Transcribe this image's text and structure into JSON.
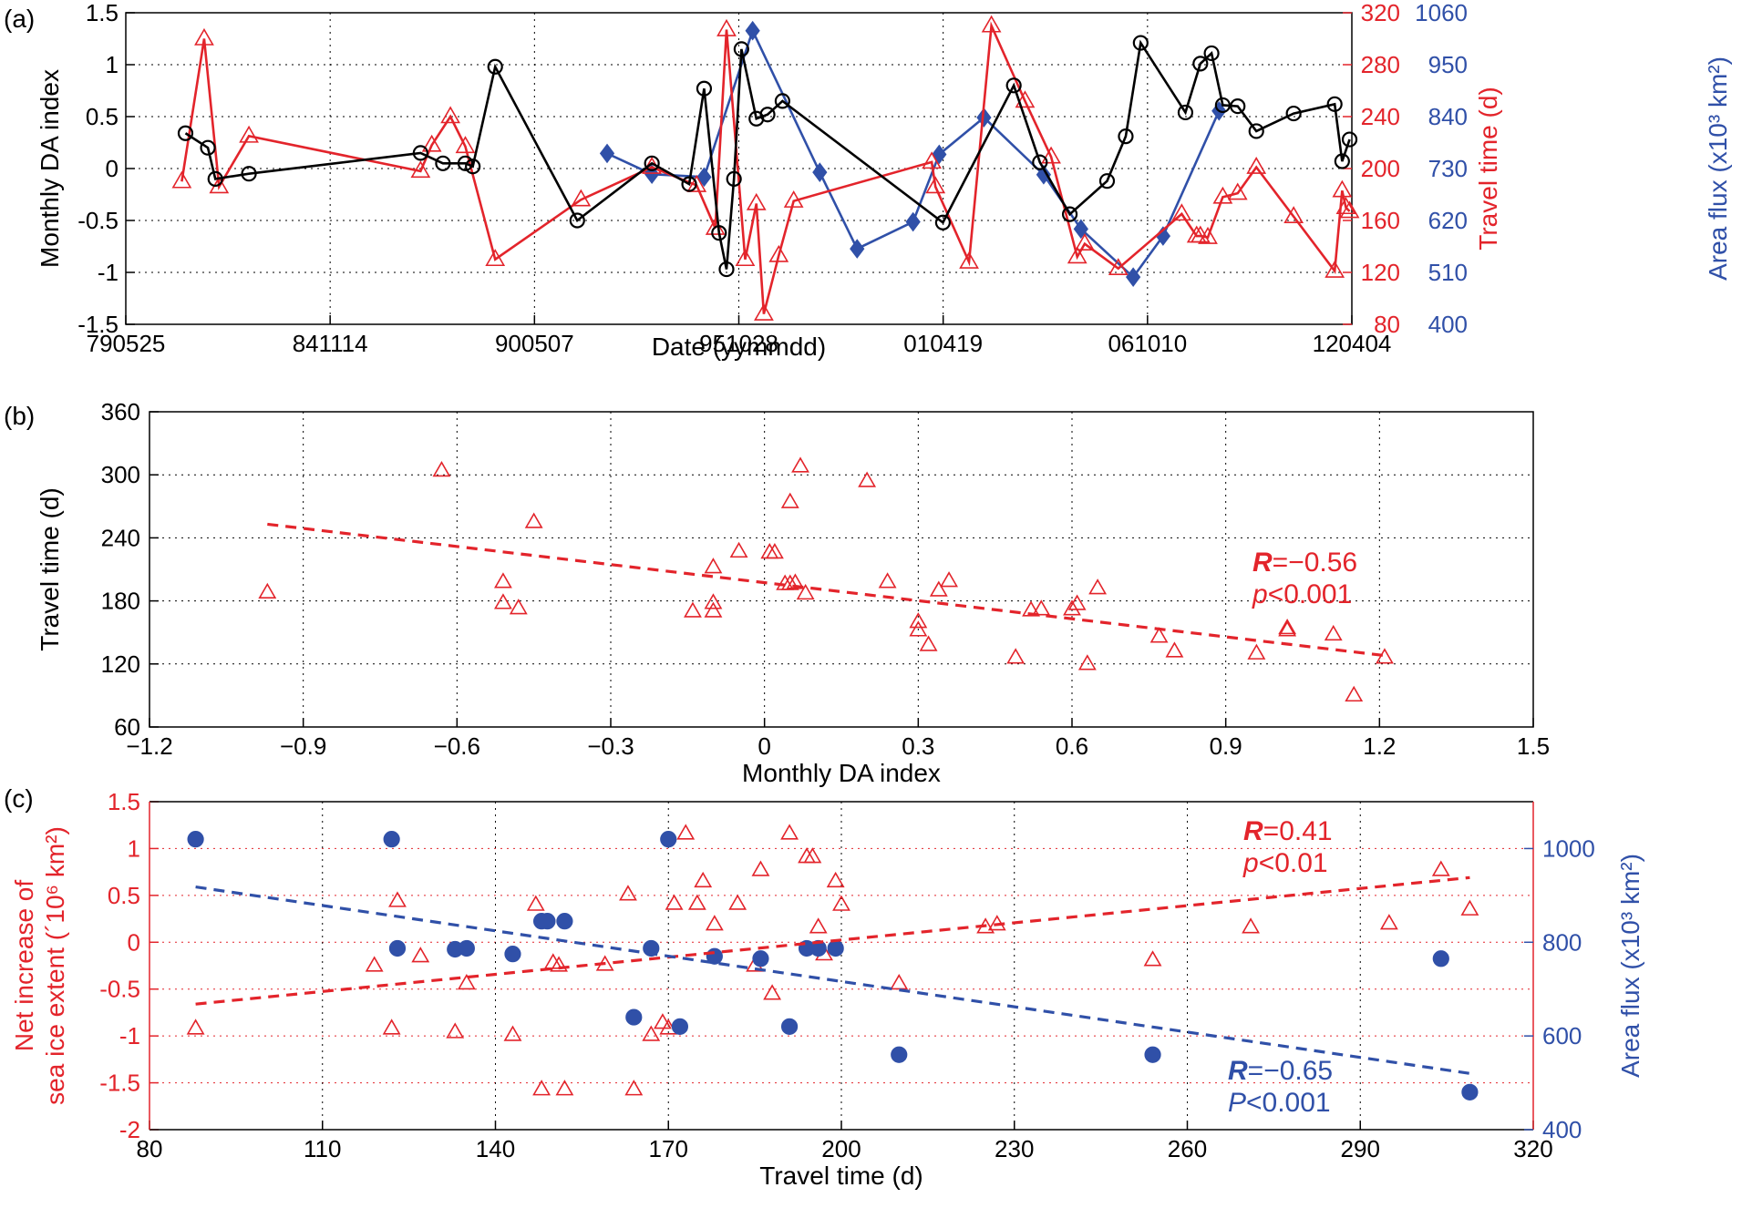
{
  "chart_data": [
    {
      "panel": "(a)",
      "type": "line",
      "xlabel": "Date (yymmdd)",
      "x_ticks": [
        "790525",
        "841114",
        "900507",
        "951028",
        "010419",
        "061010",
        "120404"
      ],
      "xlim": [
        1979.4,
        2012.26
      ],
      "ylabel": "Monthly DA index",
      "ylim": [
        -1.5,
        1.5
      ],
      "y_ticks": [
        "-1.5",
        "-1",
        "-0.5",
        "0",
        "0.5",
        "1",
        "1.5"
      ],
      "y2label": "Travel time (d)",
      "y2lim": [
        80,
        320
      ],
      "y2_ticks": [
        "80",
        "120",
        "160",
        "200",
        "240",
        "280",
        "320"
      ],
      "y3label": "Area flux (x10³ km²)",
      "y3lim": [
        400,
        1060
      ],
      "y3_ticks": [
        "400",
        "510",
        "620",
        "730",
        "840",
        "950",
        "1060"
      ],
      "series": [
        {
          "name": "Monthly DA index",
          "color": "#000000",
          "marker": "circle",
          "x": [
            1981.0,
            1981.6,
            1981.8,
            1982.7,
            1987.3,
            1987.9,
            1988.5,
            1988.7,
            1989.3,
            1991.5,
            1993.5,
            1994.5,
            1994.9,
            1995.3,
            1995.5,
            1995.7,
            1995.9,
            1996.3,
            1996.6,
            1997.0,
            2001.3,
            2003.2,
            2003.9,
            2004.7,
            2005.7,
            2006.2,
            2006.6,
            2007.8,
            2008.2,
            2008.5,
            2008.8,
            2009.2,
            2009.7,
            2010.7,
            2011.8,
            2012.0,
            2012.2
          ],
          "values": [
            0.34,
            0.2,
            -0.1,
            -0.05,
            0.15,
            0.05,
            0.05,
            0.02,
            0.98,
            -0.5,
            0.05,
            -0.15,
            0.77,
            -0.62,
            -0.97,
            -0.1,
            1.15,
            0.48,
            0.52,
            0.65,
            -0.52,
            0.8,
            0.06,
            -0.44,
            -0.12,
            0.31,
            1.21,
            0.54,
            1.01,
            1.11,
            0.61,
            0.6,
            0.36,
            0.53,
            0.62,
            0.07,
            0.28
          ]
        },
        {
          "name": "Travel time",
          "color": "#e3242b",
          "marker": "triangle",
          "axis": "y2",
          "x": [
            1980.9,
            1981.5,
            1981.9,
            1982.7,
            1987.3,
            1987.6,
            1988.1,
            1988.5,
            1989.3,
            1991.6,
            1993.5,
            1994.7,
            1995.2,
            1995.5,
            1996.0,
            1996.3,
            1996.5,
            1996.9,
            1997.3,
            2001.0,
            2001.1,
            2002.0,
            2002.6,
            2003.5,
            2004.2,
            2004.9,
            2005.1,
            2006.0,
            2007.7,
            2008.1,
            2008.2,
            2008.4,
            2008.8,
            2009.2,
            2009.7,
            2010.7,
            2011.8,
            2012.0,
            2012.1,
            2012.2
          ],
          "values": [
            190,
            300,
            186,
            225,
            198,
            218,
            240,
            217,
            130,
            176,
            201,
            187,
            154,
            307,
            130,
            173,
            88,
            133,
            175,
            205,
            186,
            128,
            310,
            252,
            209,
            132,
            142,
            123,
            165,
            148,
            148,
            147,
            178,
            181,
            201,
            163,
            121,
            183,
            170,
            167
          ]
        },
        {
          "name": "Area flux",
          "color": "#3050a8",
          "marker": "diamond",
          "axis": "y3",
          "x": [
            1992.3,
            1993.5,
            1994.9,
            1996.2,
            1998.0,
            1999.0,
            2000.5,
            2001.2,
            2002.4,
            2004.0,
            2005.0,
            2006.4,
            2007.2,
            2008.7
          ],
          "values": [
            762,
            718,
            712,
            1022,
            722,
            560,
            617,
            760,
            838,
            717,
            602,
            500,
            587,
            852
          ]
        }
      ]
    },
    {
      "panel": "(b)",
      "type": "scatter",
      "xlabel": "Monthly DA index",
      "ylabel": "Travel time (d)",
      "xlim": [
        -1.2,
        1.5
      ],
      "ylim": [
        60,
        360
      ],
      "x_ticks": [
        "−1.2",
        "−0.9",
        "−0.6",
        "−0.3",
        "0",
        "0.3",
        "0.6",
        "0.9",
        "1.2",
        "1.5"
      ],
      "y_ticks": [
        "60",
        "120",
        "180",
        "240",
        "300",
        "360"
      ],
      "series": [
        {
          "name": "Travel time vs DA index",
          "color": "#e3242b",
          "marker": "triangle",
          "x": [
            -0.97,
            -0.63,
            -0.51,
            -0.51,
            -0.48,
            -0.45,
            -0.14,
            -0.1,
            -0.1,
            -0.05,
            -0.1,
            0.01,
            0.02,
            0.04,
            0.05,
            0.05,
            0.06,
            0.07,
            0.08,
            0.2,
            0.24,
            0.3,
            0.3,
            0.32,
            0.34,
            0.36,
            0.49,
            0.52,
            0.54,
            0.6,
            0.61,
            0.63,
            0.65,
            0.77,
            0.8,
            0.96,
            1.02,
            1.02,
            1.11,
            1.15,
            1.21
          ],
          "values": [
            188,
            304,
            178,
            198,
            173,
            255,
            170,
            170,
            178,
            227,
            212,
            226,
            226,
            196,
            274,
            196,
            197,
            308,
            187,
            294,
            198,
            160,
            152,
            138,
            190,
            199,
            126,
            171,
            172,
            172,
            177,
            120,
            192,
            146,
            132,
            130,
            154,
            152,
            148,
            90,
            126
          ]
        },
        {
          "name": "fit",
          "type": "line",
          "x": [
            -0.97,
            1.21
          ],
          "values": [
            253,
            128
          ]
        }
      ],
      "annotations": {
        "r_label": "R",
        "r_value": "=−0.56",
        "p_label": "p",
        "p_value": "<0.001"
      }
    },
    {
      "panel": "(c)",
      "type": "scatter",
      "xlabel": "Travel time (d)",
      "xlim": [
        80,
        320
      ],
      "x_ticks": [
        "80",
        "110",
        "140",
        "170",
        "200",
        "230",
        "260",
        "290",
        "320"
      ],
      "ylabel_line1": "Net increase of",
      "ylabel_line2": "sea ice extent (´10⁶ km²)",
      "ylim": [
        -2,
        1.5
      ],
      "y_ticks": [
        "-2",
        "-1.5",
        "-1",
        "-0.5",
        "0",
        "0.5",
        "1",
        "1.5"
      ],
      "y2label": "Area flux (x10³ km²)",
      "y2lim": [
        400,
        1100
      ],
      "y2_ticks": [
        "400",
        "600",
        "800",
        "1000"
      ],
      "series": [
        {
          "name": "Net increase of sea ice extent",
          "color": "#e3242b",
          "marker": "triangle",
          "x": [
            88,
            122,
            123,
            119,
            127,
            133,
            135,
            143,
            147,
            148,
            151,
            152,
            150,
            159,
            163,
            164,
            167,
            169,
            171,
            170,
            173,
            175,
            176,
            178,
            182,
            185,
            186,
            188,
            191,
            194,
            195,
            196,
            197,
            199,
            200,
            210,
            225,
            227,
            254,
            271,
            295,
            304,
            309
          ],
          "values": [
            -0.92,
            -0.92,
            0.44,
            -0.25,
            -0.15,
            -0.96,
            -0.44,
            -0.99,
            0.4,
            -1.57,
            -0.25,
            -1.57,
            -0.22,
            -0.24,
            0.51,
            -1.57,
            -0.99,
            -0.86,
            0.41,
            -0.92,
            1.16,
            0.41,
            0.65,
            0.19,
            0.41,
            -0.25,
            0.77,
            -0.55,
            1.16,
            0.91,
            0.91,
            0.16,
            -0.13,
            0.65,
            0.4,
            -0.44,
            0.16,
            0.19,
            -0.19,
            0.16,
            0.2,
            0.77,
            0.35
          ]
        },
        {
          "name": "Area flux",
          "color": "#3050a8",
          "marker": "circle",
          "axis": "y2",
          "x": [
            88,
            122,
            123,
            133,
            135,
            143,
            148,
            149,
            152,
            164,
            167,
            170,
            172,
            178,
            186,
            191,
            194,
            196,
            199,
            210,
            254,
            304,
            309
          ],
          "values": [
            1020,
            1020,
            787,
            785,
            787,
            775,
            845,
            845,
            845,
            640,
            787,
            1020,
            620,
            770,
            765,
            620,
            787,
            787,
            787,
            560,
            560,
            765,
            480
          ]
        },
        {
          "name": "fit net increase",
          "type": "line",
          "color": "#e3242b",
          "x": [
            88,
            309
          ],
          "values": [
            -0.66,
            0.69
          ]
        },
        {
          "name": "fit area flux",
          "type": "line",
          "color": "#3050a8",
          "axis": "y2",
          "x": [
            88,
            309
          ],
          "values": [
            918,
            520
          ]
        }
      ],
      "annotations": {
        "red_r_label": "R",
        "red_r_value": "=0.41",
        "red_p_label": "p",
        "red_p_value": "<0.01",
        "blue_r_label": "R",
        "blue_r_value": "=−0.65",
        "blue_p_label": "P",
        "blue_p_value": "<0.001"
      }
    }
  ],
  "colors": {
    "black": "#000000",
    "red": "#e3242b",
    "blue": "#3050a8",
    "grid": "#000000"
  }
}
